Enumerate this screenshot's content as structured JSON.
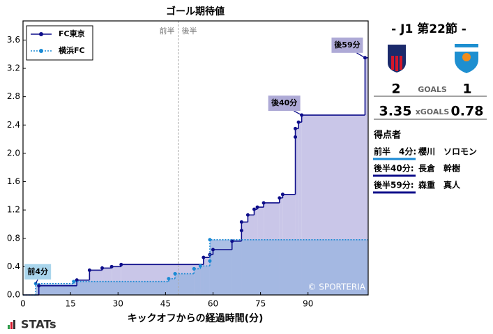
{
  "chart_data": {
    "type": "step",
    "title": "ゴール期待値",
    "x_label": "キックオフからの経過時間(分)",
    "xlim": [
      0,
      109
    ],
    "ylim": [
      0,
      3.87
    ],
    "xticks": [
      0,
      15,
      30,
      45,
      60,
      75,
      90
    ],
    "yticks": [
      {
        "value": 0,
        "label": "0.0"
      },
      0.4,
      0.8,
      1.2,
      1.6,
      {
        "value": 2,
        "label": "2.0"
      },
      2.4,
      2.8,
      3.2,
      3.6
    ],
    "legend": "upper left",
    "divider": {
      "x": 49,
      "labels": [
        "前半",
        "後半"
      ]
    },
    "series": [
      {
        "name": "FC東京",
        "color": "#0d0d8a",
        "fill": "#c9c6e8",
        "style": "solid",
        "x": [
          5,
          17,
          21,
          25,
          28,
          31,
          57,
          59,
          60,
          66,
          69,
          69,
          71,
          73,
          74,
          76,
          81,
          82,
          86,
          86,
          87,
          88,
          108
        ],
        "values": [
          0.13,
          0.21,
          0.35,
          0.38,
          0.4,
          0.43,
          0.53,
          0.57,
          0.64,
          0.76,
          0.91,
          1.03,
          1.13,
          1.21,
          1.24,
          1.3,
          1.37,
          1.42,
          2.23,
          2.35,
          2.44,
          2.54,
          3.35
        ]
      },
      {
        "name": "横浜FC",
        "color": "#1a8ad4",
        "fill": "#9db5e0",
        "style": "dotted",
        "x": [
          4,
          16,
          46,
          48,
          54,
          56,
          59,
          59
        ],
        "values": [
          0.16,
          0.19,
          0.23,
          0.3,
          0.37,
          0.41,
          0.48,
          0.78
        ]
      }
    ],
    "annotations": [
      {
        "text": "前4分",
        "x": 4,
        "y": 0.16,
        "color": "#a9d5ec"
      },
      {
        "text": "後40分",
        "x": 88,
        "y": 2.54,
        "color": "#aeaad6"
      },
      {
        "text": "後59分",
        "x": 108,
        "y": 3.35,
        "color": "#aeaad6"
      }
    ],
    "credit": "© SPORTERIA"
  },
  "panel": {
    "match": "- J1 第22節 -",
    "goals": {
      "home": "2",
      "label": "GOALS",
      "away": "1"
    },
    "xg": {
      "home": "3.35",
      "label": "xGOALS",
      "away": "0.78"
    },
    "scorers_title": "得点者",
    "scorers": [
      {
        "time": "前半　4分:",
        "name": "櫻川　ソロモン",
        "color": "#1a8ad4"
      },
      {
        "time": "後半40分:",
        "name": "長倉　幹樹",
        "color": "#0d0d8a"
      },
      {
        "time": "後半59分:",
        "name": "森重　真人",
        "color": "#0d0d8a"
      }
    ]
  },
  "footer": {
    "brand": "STATs"
  }
}
